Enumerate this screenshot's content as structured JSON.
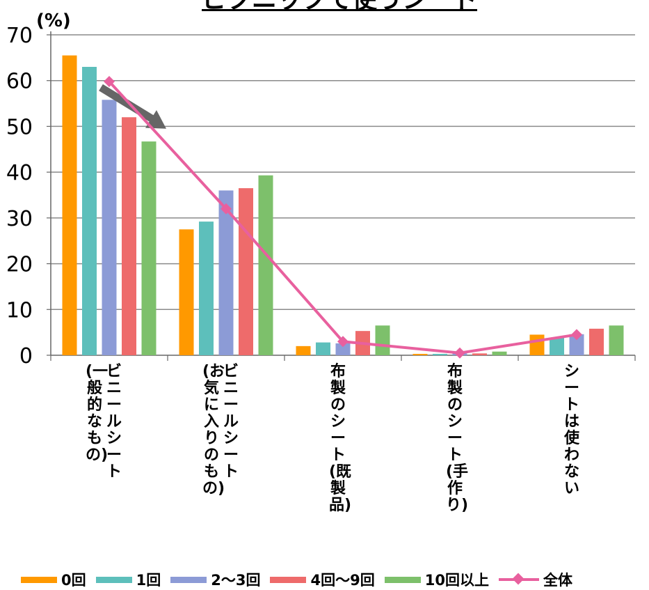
{
  "chart_data": {
    "type": "bar",
    "title": "ピクニックで使うシート",
    "ylabel": "(%)",
    "ylim": [
      0,
      70
    ],
    "yticks": [
      "0",
      "10",
      "20",
      "30",
      "40",
      "50",
      "60",
      "70"
    ],
    "grid": true,
    "legend_position": "bottom",
    "categories": [
      "ビニールシート(一般的なもの)",
      "ビニールシート(お気に入りのもの)",
      "布製のシート(既製品)",
      "布製のシート(手作り)",
      "シートは使わない"
    ],
    "category_label_columns": [
      [
        "ビニールシート",
        "(一般的なもの)"
      ],
      [
        "ビニールシート",
        "(お気に入りのもの)"
      ],
      [
        "布製のシート(既製品)"
      ],
      [
        "布製のシート(手作り)"
      ],
      [
        "シートは使わない"
      ]
    ],
    "series": [
      {
        "name": "0回",
        "color": "#ff9900",
        "values": [
          65.5,
          27.5,
          2.0,
          0.3,
          4.5
        ]
      },
      {
        "name": "1回",
        "color": "#5dbfbb",
        "values": [
          63.0,
          29.2,
          2.8,
          0.3,
          3.8
        ]
      },
      {
        "name": "2〜3回",
        "color": "#8c9bd6",
        "values": [
          55.8,
          36.0,
          2.6,
          0.4,
          4.6
        ]
      },
      {
        "name": "4回〜9回",
        "color": "#ee6b6b",
        "values": [
          52.0,
          36.5,
          5.3,
          0.4,
          5.8
        ]
      },
      {
        "name": "10回以上",
        "color": "#7dc06b",
        "values": [
          46.7,
          39.3,
          6.5,
          0.8,
          6.5
        ]
      }
    ],
    "line_series": {
      "name": "全体",
      "color": "#e8609e",
      "marker": "diamond",
      "values": [
        59.8,
        32.0,
        3.0,
        0.5,
        4.5
      ]
    },
    "annotations": [
      {
        "type": "arrow",
        "color": "#666666",
        "description": "downward trend arrow over first category"
      }
    ]
  }
}
